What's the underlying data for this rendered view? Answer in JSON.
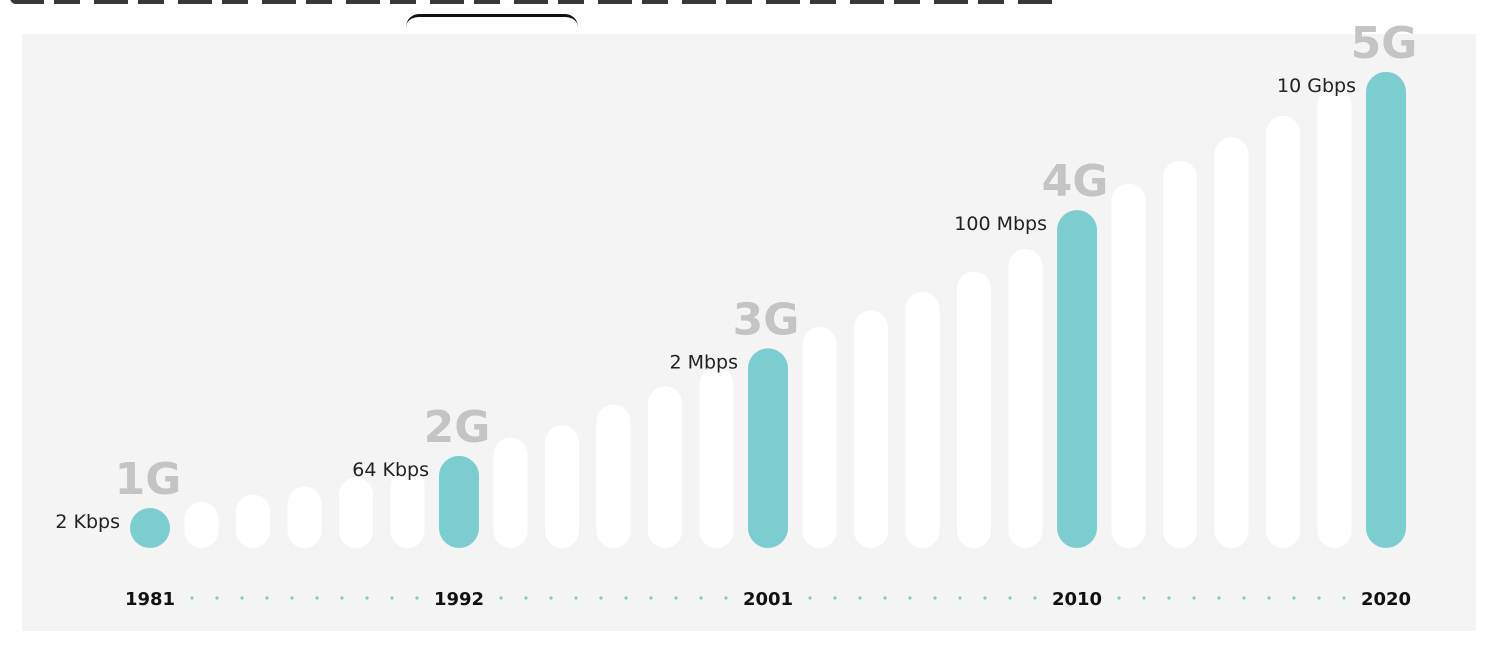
{
  "chart_data": {
    "type": "bar",
    "title": "",
    "xlabel": "",
    "ylabel": "",
    "accent_color": "#7ccdd0",
    "filler_color": "#ffffff",
    "background_color": "#f4f4f4",
    "generation_label_color": "#c4c4c4",
    "dot_color": "#7ccdd0",
    "highlights": [
      {
        "generation": "1G",
        "year": "1981",
        "speed": "2 Kbps"
      },
      {
        "generation": "2G",
        "year": "1992",
        "speed": "64 Kbps"
      },
      {
        "generation": "3G",
        "year": "2001",
        "speed": "2 Mbps"
      },
      {
        "generation": "4G",
        "year": "2010",
        "speed": "100 Mbps"
      },
      {
        "generation": "5G",
        "year": "2020",
        "speed": "10 Gbps"
      }
    ],
    "bars": [
      {
        "value": 2,
        "highlight": 0
      },
      {
        "value": 4.5
      },
      {
        "value": 5.2
      },
      {
        "value": 6
      },
      {
        "value": 6.9
      },
      {
        "value": 7.7
      },
      {
        "value": 9,
        "highlight": 1
      },
      {
        "value": 10.8
      },
      {
        "value": 12
      },
      {
        "value": 14
      },
      {
        "value": 15.8
      },
      {
        "value": 17.6
      },
      {
        "value": 19.5,
        "highlight": 2
      },
      {
        "value": 21.6
      },
      {
        "value": 23.2
      },
      {
        "value": 25
      },
      {
        "value": 27
      },
      {
        "value": 29.2
      },
      {
        "value": 33,
        "highlight": 3
      },
      {
        "value": 35.6
      },
      {
        "value": 37.8
      },
      {
        "value": 40.1
      },
      {
        "value": 42.2
      },
      {
        "value": 45
      },
      {
        "value": 46.5,
        "highlight": 4
      }
    ],
    "ylim": [
      0,
      50
    ]
  }
}
